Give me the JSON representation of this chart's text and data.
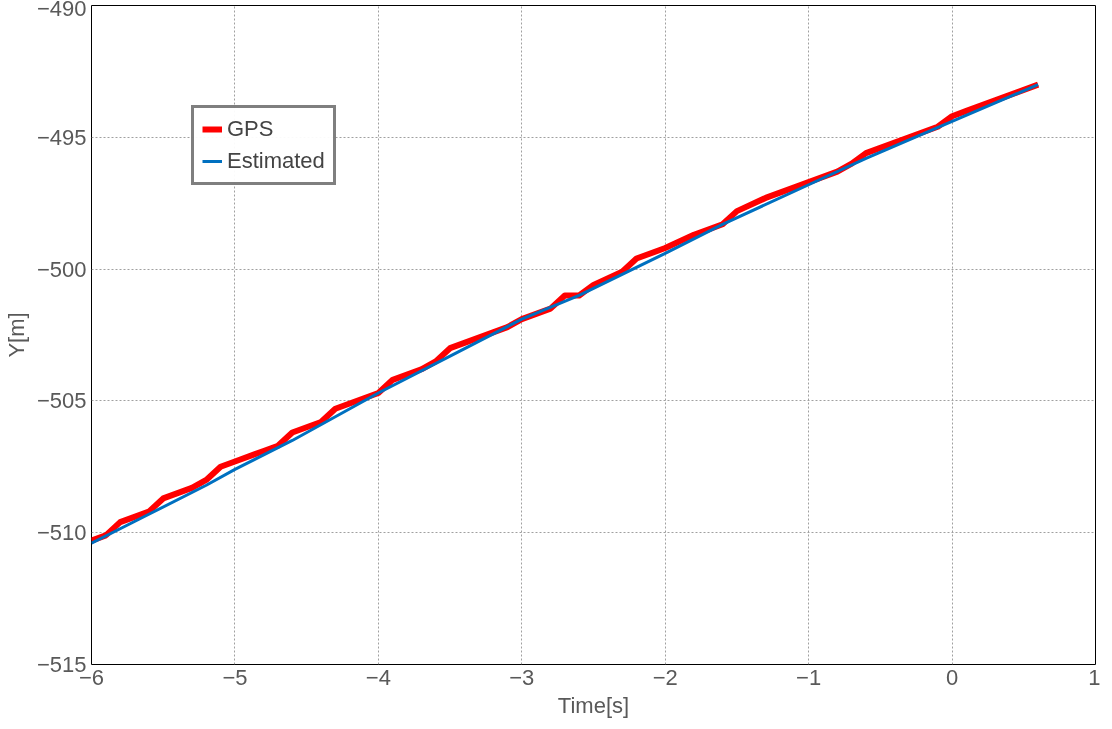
{
  "chart_data": {
    "type": "line",
    "xlabel": "Time[s]",
    "ylabel": "Y[m]",
    "xlim": [
      -6,
      1
    ],
    "xticks": [
      -6,
      -5,
      -4,
      -3,
      -2,
      -1,
      0,
      1
    ],
    "ylim": [
      -515,
      -490
    ],
    "yticks": [
      -515,
      -510,
      -505,
      -500,
      -495,
      -490
    ],
    "grid": true,
    "legend": "top left",
    "marker": "none",
    "line_style": "solid",
    "series": [
      {
        "name": "GPS",
        "color": "#ff0000",
        "x": [
          -6,
          -5.9,
          -5.8,
          -5.6,
          -5.5,
          -5.3,
          -5.2,
          -5.1,
          -5.0,
          -4.8,
          -4.7,
          -4.6,
          -4.4,
          -4.3,
          -4.1,
          -4.0,
          -3.9,
          -3.7,
          -3.6,
          -3.5,
          -3.3,
          -3.1,
          -3.0,
          -2.8,
          -2.7,
          -2.6,
          -2.5,
          -2.3,
          -2.2,
          -2.0,
          -1.8,
          -1.6,
          -1.5,
          -1.3,
          -1.1,
          -1.0,
          -0.8,
          -0.7,
          -0.6,
          -0.4,
          -0.2,
          -0.1,
          0.0,
          0.1,
          0.3,
          0.6
        ],
        "values": [
          -510.3,
          -510.1,
          -509.6,
          -509.2,
          -508.7,
          -508.3,
          -508.0,
          -507.5,
          -507.3,
          -506.9,
          -506.7,
          -506.2,
          -505.8,
          -505.3,
          -504.9,
          -504.7,
          -504.2,
          -503.8,
          -503.5,
          -503.0,
          -502.6,
          -502.2,
          -501.9,
          -501.5,
          -501.0,
          -501.0,
          -500.6,
          -500.1,
          -499.6,
          -499.2,
          -498.7,
          -498.3,
          -497.8,
          -497.3,
          -496.9,
          -496.7,
          -496.3,
          -496.0,
          -495.6,
          -495.2,
          -494.8,
          -494.6,
          -494.2,
          -494.0,
          -493.6,
          -493.0
        ]
      },
      {
        "name": "Estimated",
        "color": "#0070c0",
        "x": [
          -6,
          -5.6,
          -5.2,
          -5.0,
          -4.6,
          -4.0,
          -3.5,
          -3.0,
          -2.6,
          -2.0,
          -1.6,
          -1.0,
          -0.6,
          0,
          0.6
        ],
        "values": [
          -510.4,
          -509.3,
          -508.2,
          -507.6,
          -506.5,
          -504.7,
          -503.3,
          -501.9,
          -501.0,
          -499.4,
          -498.3,
          -496.8,
          -495.8,
          -494.4,
          -493.0
        ]
      }
    ]
  }
}
